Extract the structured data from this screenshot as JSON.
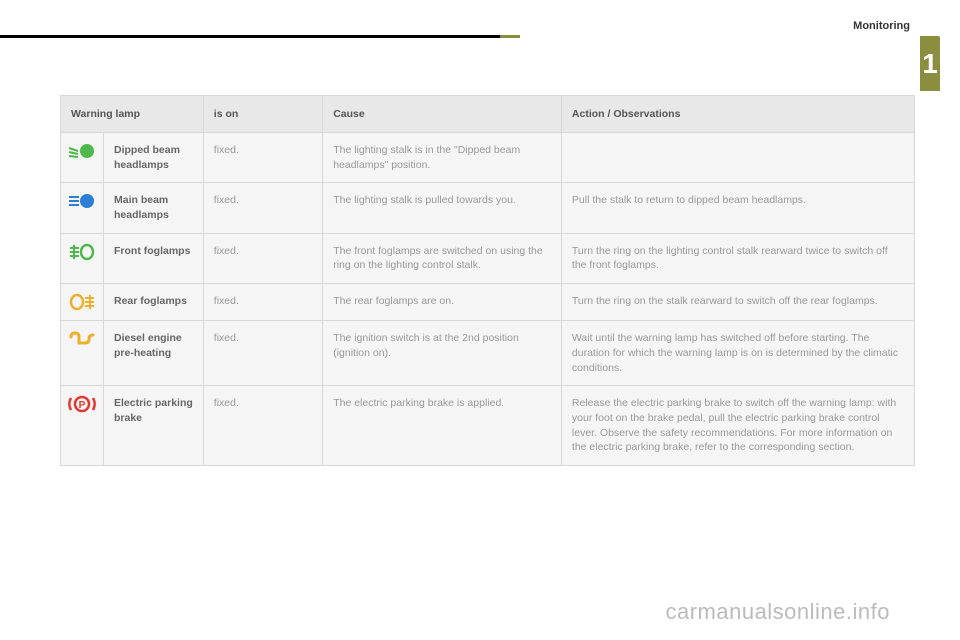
{
  "section_title": "Monitoring",
  "side_tab": "1",
  "watermark": "carmanualsonline.info",
  "table": {
    "headers": {
      "lamp": "Warning lamp",
      "ison": "is on",
      "cause": "Cause",
      "action": "Action / Observations"
    },
    "rows": [
      {
        "icon": "dipped-beam-icon",
        "icon_color": "#4fb84a",
        "name": "Dipped beam headlamps",
        "ison": "fixed.",
        "cause": "The lighting stalk is in the \"Dipped beam headlamps\" position.",
        "action": ""
      },
      {
        "icon": "main-beam-icon",
        "icon_color": "#2a7ed6",
        "name": "Main beam headlamps",
        "ison": "fixed.",
        "cause": "The lighting stalk is pulled towards you.",
        "action": "Pull the stalk to return to dipped beam headlamps."
      },
      {
        "icon": "front-fog-icon",
        "icon_color": "#4fb84a",
        "name": "Front foglamps",
        "ison": "fixed.",
        "cause": "The front foglamps are switched on using the ring on the lighting control stalk.",
        "action": "Turn the ring on the lighting control stalk rearward twice to switch off the front foglamps."
      },
      {
        "icon": "rear-fog-icon",
        "icon_color": "#eeb02a",
        "name": "Rear foglamps",
        "ison": "fixed.",
        "cause": "The rear foglamps are on.",
        "action": "Turn the ring on the stalk rearward to switch off the rear foglamps."
      },
      {
        "icon": "diesel-preheat-icon",
        "icon_color": "#eeb02a",
        "name": "Diesel engine pre-heating",
        "ison": "fixed.",
        "cause": "The ignition switch is at the 2nd position (ignition on).",
        "action": "Wait until the warning lamp has switched off before starting. The duration for which the warning lamp is on is determined by the climatic conditions."
      },
      {
        "icon": "parking-brake-icon",
        "icon_color": "#e2362f",
        "name": "Electric parking brake",
        "ison": "fixed.",
        "cause": "The electric parking brake is applied.",
        "action": "Release the electric parking brake to switch off the warning lamp: with your foot on the brake pedal, pull the electric parking brake control lever. Observe the safety recommendations. For more information on the electric parking brake, refer to the corresponding section."
      }
    ]
  }
}
